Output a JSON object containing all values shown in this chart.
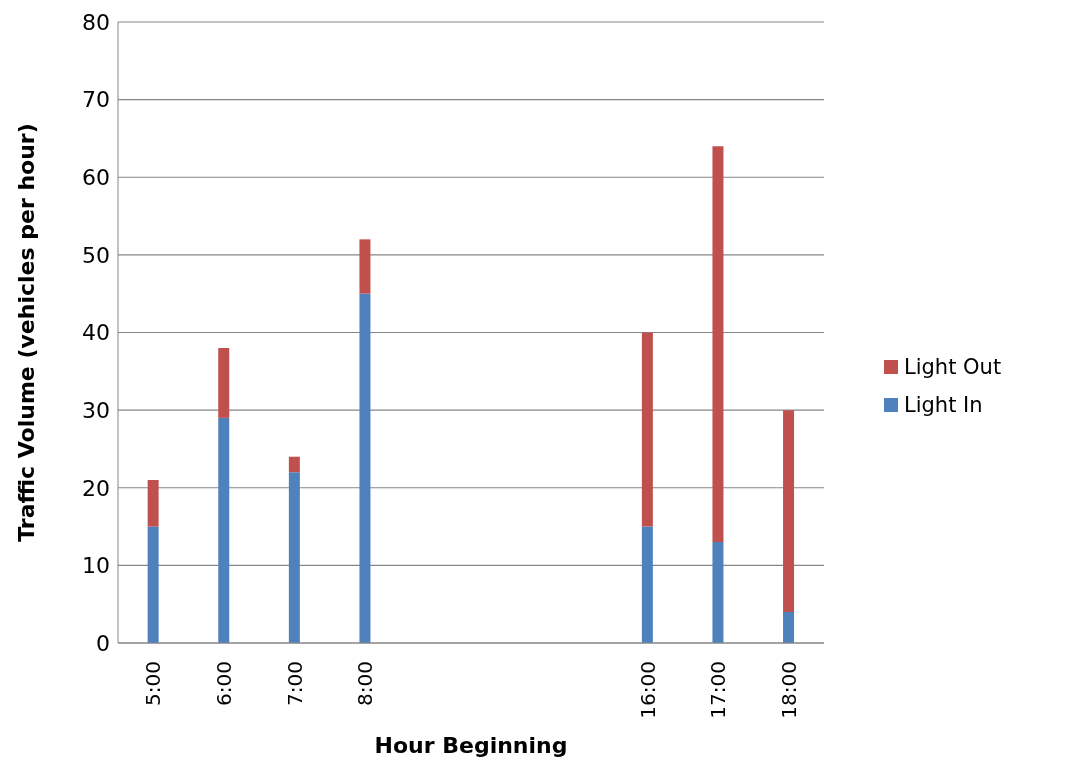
{
  "chart_data": {
    "type": "bar",
    "stacked": true,
    "xlabel": "Hour Beginning",
    "ylabel": "Traffic Volume (vehicles per hour)",
    "categories": [
      "5:00",
      "6:00",
      "7:00",
      "8:00",
      null,
      null,
      null,
      "16:00",
      "17:00",
      "18:00"
    ],
    "series": [
      {
        "name": "Light In",
        "color": "#4f81bd",
        "values": [
          15,
          29,
          22,
          45,
          null,
          null,
          null,
          15,
          13,
          4
        ]
      },
      {
        "name": "Light Out",
        "color": "#c0504d",
        "values": [
          6,
          9,
          2,
          7,
          null,
          null,
          null,
          25,
          51,
          26
        ]
      }
    ],
    "ylim": [
      0,
      80
    ],
    "yticks": [
      0,
      10,
      20,
      30,
      40,
      50,
      60,
      70,
      80
    ],
    "grid": "y",
    "legend": "right"
  }
}
